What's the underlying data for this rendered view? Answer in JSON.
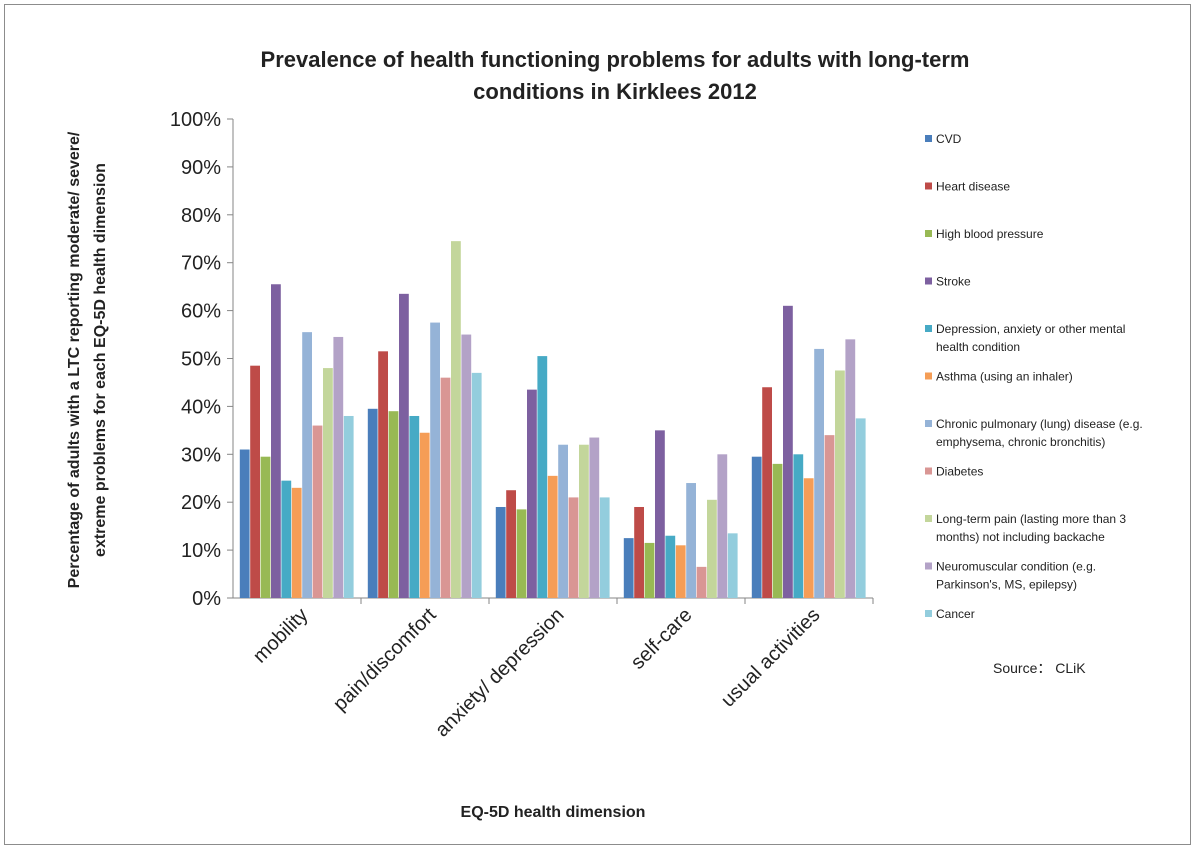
{
  "chart_data": {
    "type": "bar",
    "title_lines": [
      "Prevalence of health functioning problems for adults with long-term",
      "conditions in Kirklees 2012"
    ],
    "xlabel": "EQ-5D health dimension",
    "ylabel_lines": [
      "Percentage of adults with a LTC reporting moderate/ severe/",
      "extreme problems for each EQ-5D health dimension"
    ],
    "ylim": [
      0,
      100
    ],
    "yticks": [
      "0%",
      "10%",
      "20%",
      "30%",
      "40%",
      "50%",
      "60%",
      "70%",
      "80%",
      "90%",
      "100%"
    ],
    "grid": false,
    "legend_position": "right",
    "categories": [
      "mobility",
      "pain/discomfort",
      "anxiety/ depression",
      "self-care",
      "usual activities"
    ],
    "series": [
      {
        "name": "CVD",
        "color": "#4a7ebb",
        "values": [
          31,
          39.5,
          19,
          12.5,
          29.5
        ]
      },
      {
        "name": "Heart disease",
        "color": "#be4b48",
        "values": [
          48.5,
          51.5,
          22.5,
          19,
          44
        ]
      },
      {
        "name": "High blood pressure",
        "color": "#98b954",
        "values": [
          29.5,
          39,
          18.5,
          11.5,
          28
        ]
      },
      {
        "name": "Stroke",
        "color": "#7d60a0",
        "values": [
          65.5,
          63.5,
          43.5,
          35,
          61
        ]
      },
      {
        "name": "Depression, anxiety or other mental health condition",
        "label_lines": [
          "Depression, anxiety or other mental",
          "health condition"
        ],
        "color": "#46aac5",
        "values": [
          24.5,
          38,
          50.5,
          13,
          30
        ]
      },
      {
        "name": "Asthma (using an inhaler)",
        "color": "#f59d56",
        "values": [
          23,
          34.5,
          25.5,
          11,
          25
        ]
      },
      {
        "name": "Chronic pulmonary (lung) disease (e.g. emphysema, chronic bronchitis)",
        "label_lines": [
          "Chronic pulmonary (lung) disease (e.g.",
          "emphysema, chronic bronchitis)"
        ],
        "color": "#95b3d7",
        "values": [
          55.5,
          57.5,
          32,
          24,
          52
        ]
      },
      {
        "name": "Diabetes",
        "color": "#d99694",
        "values": [
          36,
          46,
          21,
          6.5,
          34
        ]
      },
      {
        "name": "Long-term pain (lasting more than 3 months) not including backache",
        "label_lines": [
          "Long-term pain (lasting more than 3",
          "months) not including backache"
        ],
        "color": "#c3d69b",
        "values": [
          48,
          74.5,
          32,
          20.5,
          47.5
        ]
      },
      {
        "name": "Neuromuscular condition (e.g. Parkinson's, MS, epilepsy)",
        "label_lines": [
          "Neuromuscular condition (e.g.",
          "Parkinson's, MS, epilepsy)"
        ],
        "color": "#b3a2c7",
        "values": [
          54.5,
          55,
          33.5,
          30,
          54
        ]
      },
      {
        "name": "Cancer",
        "color": "#93cddd",
        "values": [
          38,
          47,
          21,
          13.5,
          37.5
        ]
      }
    ],
    "source": "Source： CLiK"
  }
}
